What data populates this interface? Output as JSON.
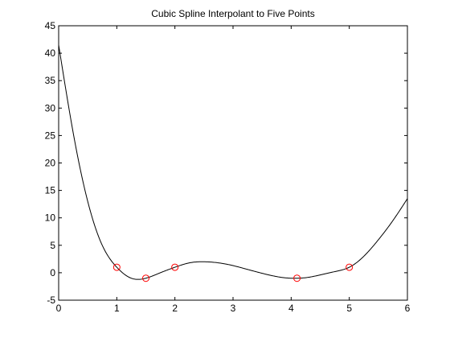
{
  "chart_data": {
    "type": "line",
    "title": "Cubic Spline Interpolant to Five Points",
    "xlabel": "",
    "ylabel": "",
    "xlim": [
      0,
      6
    ],
    "ylim": [
      -5,
      45
    ],
    "xticks": [
      0,
      1,
      2,
      3,
      4,
      5,
      6
    ],
    "yticks": [
      -5,
      0,
      5,
      10,
      15,
      20,
      25,
      30,
      35,
      40,
      45
    ],
    "grid": false,
    "legend": "none",
    "series": [
      {
        "style": "curve",
        "color": "#000000",
        "x": [
          0,
          0.25,
          0.5,
          0.75,
          1.0,
          1.25,
          1.5,
          1.75,
          2.0,
          2.25,
          2.5,
          2.75,
          3.0,
          3.25,
          3.5,
          3.75,
          4.0,
          4.1,
          4.25,
          4.5,
          4.75,
          5.0,
          5.25,
          5.5,
          5.75,
          6.0
        ],
        "y": [
          41.5,
          25.5,
          13.0,
          5.0,
          1.0,
          -1.0,
          -1.0,
          0.0,
          1.0,
          1.8,
          2.0,
          1.8,
          1.3,
          0.6,
          -0.1,
          -0.7,
          -1.0,
          -1.0,
          -0.9,
          -0.4,
          0.2,
          1.0,
          3.0,
          6.0,
          9.5,
          13.5
        ]
      },
      {
        "style": "markers",
        "marker": "circle",
        "color": "#ff0000",
        "x": [
          1.0,
          1.5,
          2.0,
          4.1,
          5.0
        ],
        "y": [
          1.0,
          -1.0,
          1.0,
          -1.0,
          1.0
        ]
      }
    ]
  }
}
